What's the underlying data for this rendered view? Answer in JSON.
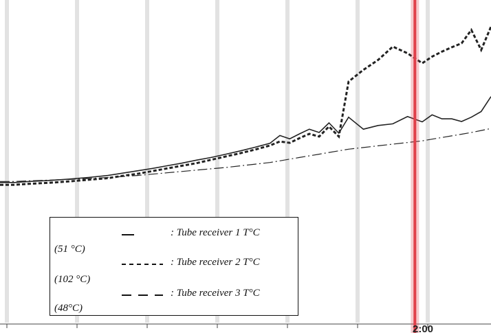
{
  "chart_data": {
    "type": "line",
    "title": "",
    "xlabel": "",
    "ylabel": "",
    "ylim": [
      0,
      1
    ],
    "x": [
      0,
      0.03,
      0.06,
      0.1,
      0.14,
      0.18,
      0.22,
      0.25,
      0.28,
      0.31,
      0.34,
      0.37,
      0.4,
      0.43,
      0.46,
      0.49,
      0.52,
      0.55,
      0.57,
      0.59,
      0.61,
      0.63,
      0.65,
      0.67,
      0.69,
      0.71,
      0.74,
      0.77,
      0.8,
      0.83,
      0.86,
      0.88,
      0.9,
      0.92,
      0.94,
      0.96,
      0.98,
      1.0
    ],
    "series": [
      {
        "name": "Tube receiver 1 T°C",
        "style": "solid",
        "values": [
          0.452,
          0.452,
          0.455,
          0.458,
          0.462,
          0.467,
          0.473,
          0.48,
          0.487,
          0.494,
          0.502,
          0.51,
          0.519,
          0.527,
          0.537,
          0.547,
          0.558,
          0.57,
          0.593,
          0.583,
          0.598,
          0.612,
          0.602,
          0.631,
          0.6,
          0.648,
          0.612,
          0.623,
          0.628,
          0.65,
          0.634,
          0.655,
          0.643,
          0.643,
          0.635,
          0.648,
          0.665,
          0.71
        ]
      },
      {
        "name": "Tube receiver 2 T°C",
        "style": "dashed",
        "values": [
          0.445,
          0.445,
          0.448,
          0.451,
          0.455,
          0.46,
          0.465,
          0.472,
          0.478,
          0.486,
          0.494,
          0.502,
          0.51,
          0.52,
          0.53,
          0.54,
          0.551,
          0.563,
          0.575,
          0.571,
          0.585,
          0.598,
          0.59,
          0.62,
          0.59,
          0.755,
          0.79,
          0.82,
          0.86,
          0.84,
          0.81,
          0.83,
          0.845,
          0.858,
          0.87,
          0.91,
          0.85,
          0.92
        ]
      },
      {
        "name": "Tube receiver 3 T°C",
        "style": "dash-dot",
        "values": [
          0.455,
          0.455,
          0.457,
          0.459,
          0.461,
          0.464,
          0.467,
          0.47,
          0.473,
          0.477,
          0.481,
          0.485,
          0.489,
          0.493,
          0.497,
          0.502,
          0.507,
          0.512,
          0.517,
          0.522,
          0.527,
          0.532,
          0.537,
          0.542,
          0.547,
          0.552,
          0.557,
          0.562,
          0.567,
          0.572,
          0.577,
          0.582,
          0.587,
          0.592,
          0.597,
          0.602,
          0.608,
          0.614
        ]
      }
    ],
    "legend": [
      {
        "label": ": Tube receiver 1 T°C",
        "value": "(51 °C)"
      },
      {
        "label": ": Tube receiver 2 T°C",
        "value": "(102 °C)"
      },
      {
        "label": ": Tube receiver 3 T°C",
        "value": "(48°C)"
      }
    ],
    "legend_position": "bottom-left",
    "grid": true,
    "marker_line": {
      "x": 0.845,
      "color": "#e0404a"
    },
    "x_tick_label": "2:00"
  }
}
